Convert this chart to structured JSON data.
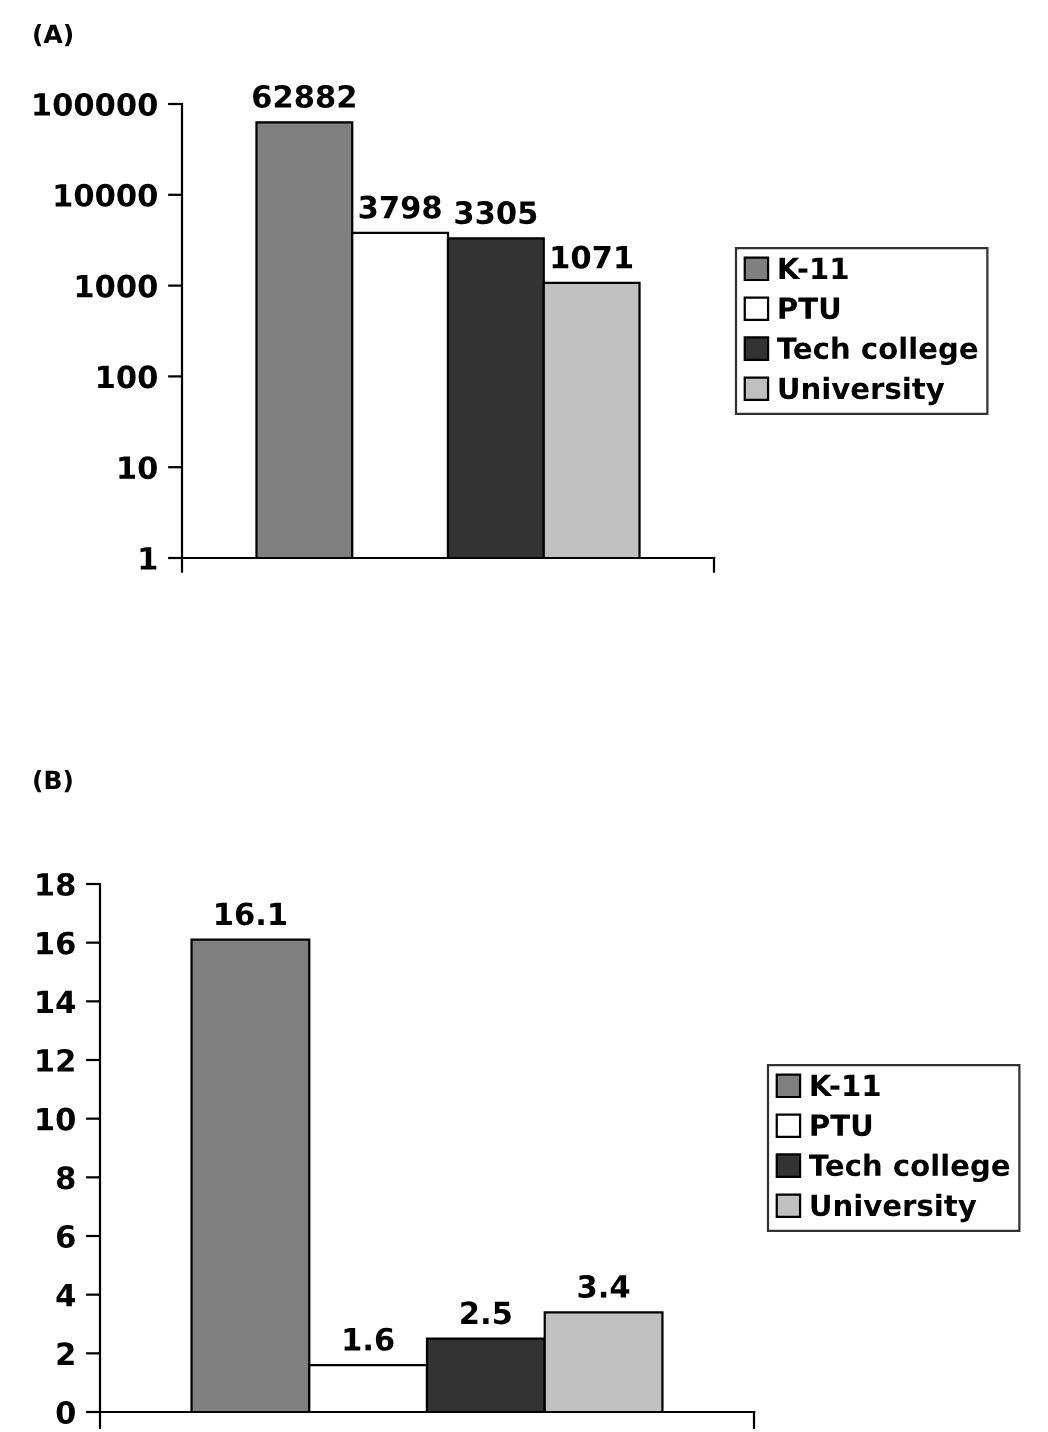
{
  "chart_data": [
    {
      "type": "bar",
      "title": "(A)",
      "categories": [
        null
      ],
      "log": "y",
      "ylim": [
        1,
        100000
      ],
      "yticks": [
        1,
        10,
        100,
        1000,
        10000,
        100000
      ],
      "data_labels": true,
      "legend": "right",
      "grid": false,
      "series": [
        {
          "name": "K-11",
          "color": "#808080",
          "values": [
            62882
          ]
        },
        {
          "name": "PTU",
          "color": "#ffffff",
          "values": [
            3798
          ]
        },
        {
          "name": "Tech college",
          "color": "#333333",
          "values": [
            3305
          ]
        },
        {
          "name": "University",
          "color": "#c0c0c0",
          "values": [
            1071
          ]
        }
      ]
    },
    {
      "type": "bar",
      "title": "(B)",
      "categories": [
        null
      ],
      "ylim": [
        0,
        18
      ],
      "yticks": [
        0,
        2,
        4,
        6,
        8,
        10,
        12,
        14,
        16,
        18
      ],
      "data_labels": true,
      "legend": "right",
      "grid": false,
      "series": [
        {
          "name": "K-11",
          "color": "#808080",
          "values": [
            16.1
          ]
        },
        {
          "name": "PTU",
          "color": "#ffffff",
          "values": [
            1.6
          ]
        },
        {
          "name": "Tech college",
          "color": "#333333",
          "values": [
            2.5
          ]
        },
        {
          "name": "University",
          "color": "#c0c0c0",
          "values": [
            3.4
          ]
        }
      ]
    }
  ]
}
